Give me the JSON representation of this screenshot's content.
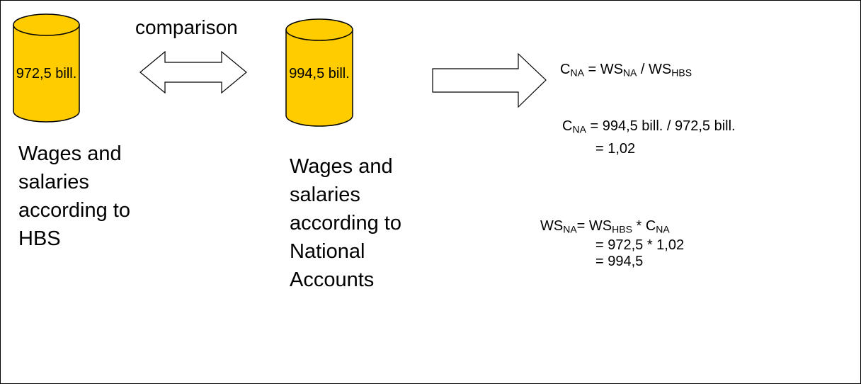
{
  "comparison_label": "comparison",
  "left_store": {
    "value_label": "972,5 bill.",
    "caption_lines": [
      "Wages and",
      "salaries",
      "according to",
      "HBS"
    ]
  },
  "right_store": {
    "value_label": "994,5 bill.",
    "caption_lines": [
      "Wages and",
      "salaries",
      "according to",
      "National",
      "Accounts"
    ]
  },
  "formulas": [
    {
      "lines": [
        [
          {
            "text": "C"
          },
          {
            "sub": "NA"
          },
          {
            "text": " = WS"
          },
          {
            "sub": "NA"
          },
          {
            "text": " / WS"
          },
          {
            "sub": "HBS"
          }
        ]
      ]
    },
    {
      "lines": [
        [
          {
            "text": "C"
          },
          {
            "sub": "NA"
          },
          {
            "text": " = 994,5 bill. / 972,5 bill."
          }
        ],
        [
          {
            "text": "= 1,02"
          }
        ]
      ]
    },
    {
      "lines": [
        [
          {
            "text": "WS"
          },
          {
            "sub": "NA"
          },
          {
            "text": "= WS"
          },
          {
            "sub": "HBS"
          },
          {
            "text": " * C"
          },
          {
            "sub": "NA"
          }
        ],
        [
          {
            "text": "= 972,5 * 1,02"
          }
        ],
        [
          {
            "text": "= 994,5"
          }
        ]
      ]
    }
  ]
}
